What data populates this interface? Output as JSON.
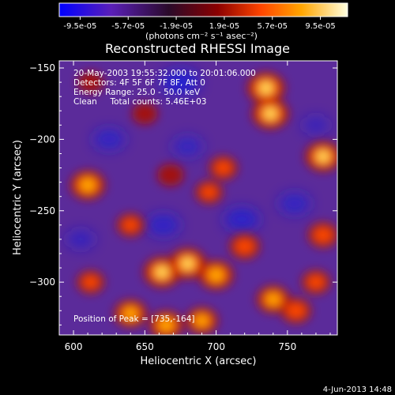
{
  "chart_data": {
    "type": "heatmap",
    "title": "Reconstructed RHESSI Image",
    "xlabel": "Heliocentric X (arcsec)",
    "ylabel": "Heliocentric Y (arcsec)",
    "xlim": [
      590,
      785
    ],
    "ylim": [
      -337,
      -145
    ],
    "x_ticks": [
      600,
      650,
      700,
      750
    ],
    "y_ticks": [
      -150,
      -200,
      -250,
      -300
    ],
    "colorbar": {
      "ticks": [
        "-9.5e-05",
        "-5.7e-05",
        "-1.9e-05",
        "1.9e-05",
        "5.7e-05",
        "9.5e-05"
      ],
      "range": [
        -9.5e-05,
        9.5e-05
      ],
      "unit_label": "(photons cm⁻² s⁻¹ asec⁻²)",
      "colors": [
        "#0000ff",
        "#5a1fb8",
        "#2a0a2a",
        "#8b0000",
        "#ff4500",
        "#ffa500",
        "#ffffe0"
      ]
    },
    "annotations": [
      "20-May-2003 19:55:32.000 to 20:01:06.000",
      "Detectors: 4F 5F 6F 7F 8F, Att 0",
      "Energy Range: 25.0 - 50.0 keV",
      "Clean     Total counts: 5.46E+03"
    ],
    "peak_label": "Position of Peak = [735,-164]",
    "peak": [
      735,
      -164
    ],
    "bright_sources": [
      {
        "x": 735,
        "y": -164,
        "level": 1.0
      },
      {
        "x": 738,
        "y": -182,
        "level": 0.95
      },
      {
        "x": 775,
        "y": -212,
        "level": 0.9
      },
      {
        "x": 610,
        "y": -232,
        "level": 0.85
      },
      {
        "x": 662,
        "y": -293,
        "level": 0.95
      },
      {
        "x": 680,
        "y": -287,
        "level": 0.95
      },
      {
        "x": 700,
        "y": -295,
        "level": 0.85
      },
      {
        "x": 720,
        "y": -275,
        "level": 0.6
      },
      {
        "x": 640,
        "y": -322,
        "level": 0.75
      },
      {
        "x": 665,
        "y": -330,
        "level": 0.8
      },
      {
        "x": 690,
        "y": -327,
        "level": 0.7
      },
      {
        "x": 740,
        "y": -312,
        "level": 0.75
      },
      {
        "x": 756,
        "y": -320,
        "level": 0.6
      },
      {
        "x": 775,
        "y": -267,
        "level": 0.6
      },
      {
        "x": 695,
        "y": -237,
        "level": 0.45
      },
      {
        "x": 705,
        "y": -220,
        "level": 0.5
      },
      {
        "x": 668,
        "y": -225,
        "level": 0.4
      },
      {
        "x": 640,
        "y": -260,
        "level": 0.45
      },
      {
        "x": 612,
        "y": -300,
        "level": 0.45
      },
      {
        "x": 612,
        "y": -160,
        "level": 0.35
      },
      {
        "x": 650,
        "y": -182,
        "level": 0.35
      },
      {
        "x": 770,
        "y": -300,
        "level": 0.5
      }
    ],
    "dark_regions": [
      {
        "x": 675,
        "y": -160,
        "level": 1.0
      },
      {
        "x": 625,
        "y": -200,
        "level": 0.6
      },
      {
        "x": 663,
        "y": -260,
        "level": 0.7
      },
      {
        "x": 718,
        "y": -256,
        "level": 0.8
      },
      {
        "x": 755,
        "y": -245,
        "level": 0.6
      },
      {
        "x": 680,
        "y": -205,
        "level": 0.5
      },
      {
        "x": 605,
        "y": -270,
        "level": 0.4
      },
      {
        "x": 770,
        "y": -190,
        "level": 0.3
      }
    ]
  },
  "footer": {
    "date": "4-Jun-2013 14:48"
  }
}
